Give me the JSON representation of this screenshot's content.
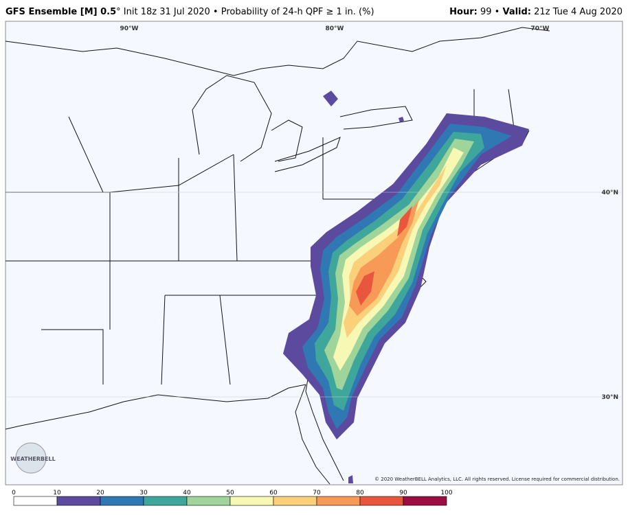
{
  "header": {
    "title_bold": "GFS Ensemble [M] 0.5",
    "title_rest": "° Init 18z 31 Jul 2020 • Probability of 24-h QPF ≥ 1 in. (%)",
    "hour_label": "Hour:",
    "hour_value": " 99 • ",
    "valid_label": "Valid:",
    "valid_value": " 21z Tue 4 Aug 2020"
  },
  "graticule": {
    "lon": [
      "90°W",
      "80°W",
      "70°W"
    ],
    "lat": [
      "40°N",
      "30°N"
    ]
  },
  "logo": "WEATHERBELL",
  "copyright": "© 2020 WeatherBELL Analytics, LLC. All rights reserved. License required for commercial distribution.",
  "colorbar": {
    "ticks": [
      0,
      10,
      20,
      30,
      40,
      50,
      60,
      70,
      80,
      90,
      100
    ],
    "colors": [
      "#ffffff",
      "#5b4a9e",
      "#2f78b4",
      "#3ea69b",
      "#9fd49b",
      "#f6f8b4",
      "#fbd07a",
      "#f79a57",
      "#e8573d",
      "#9c0d44"
    ]
  }
}
